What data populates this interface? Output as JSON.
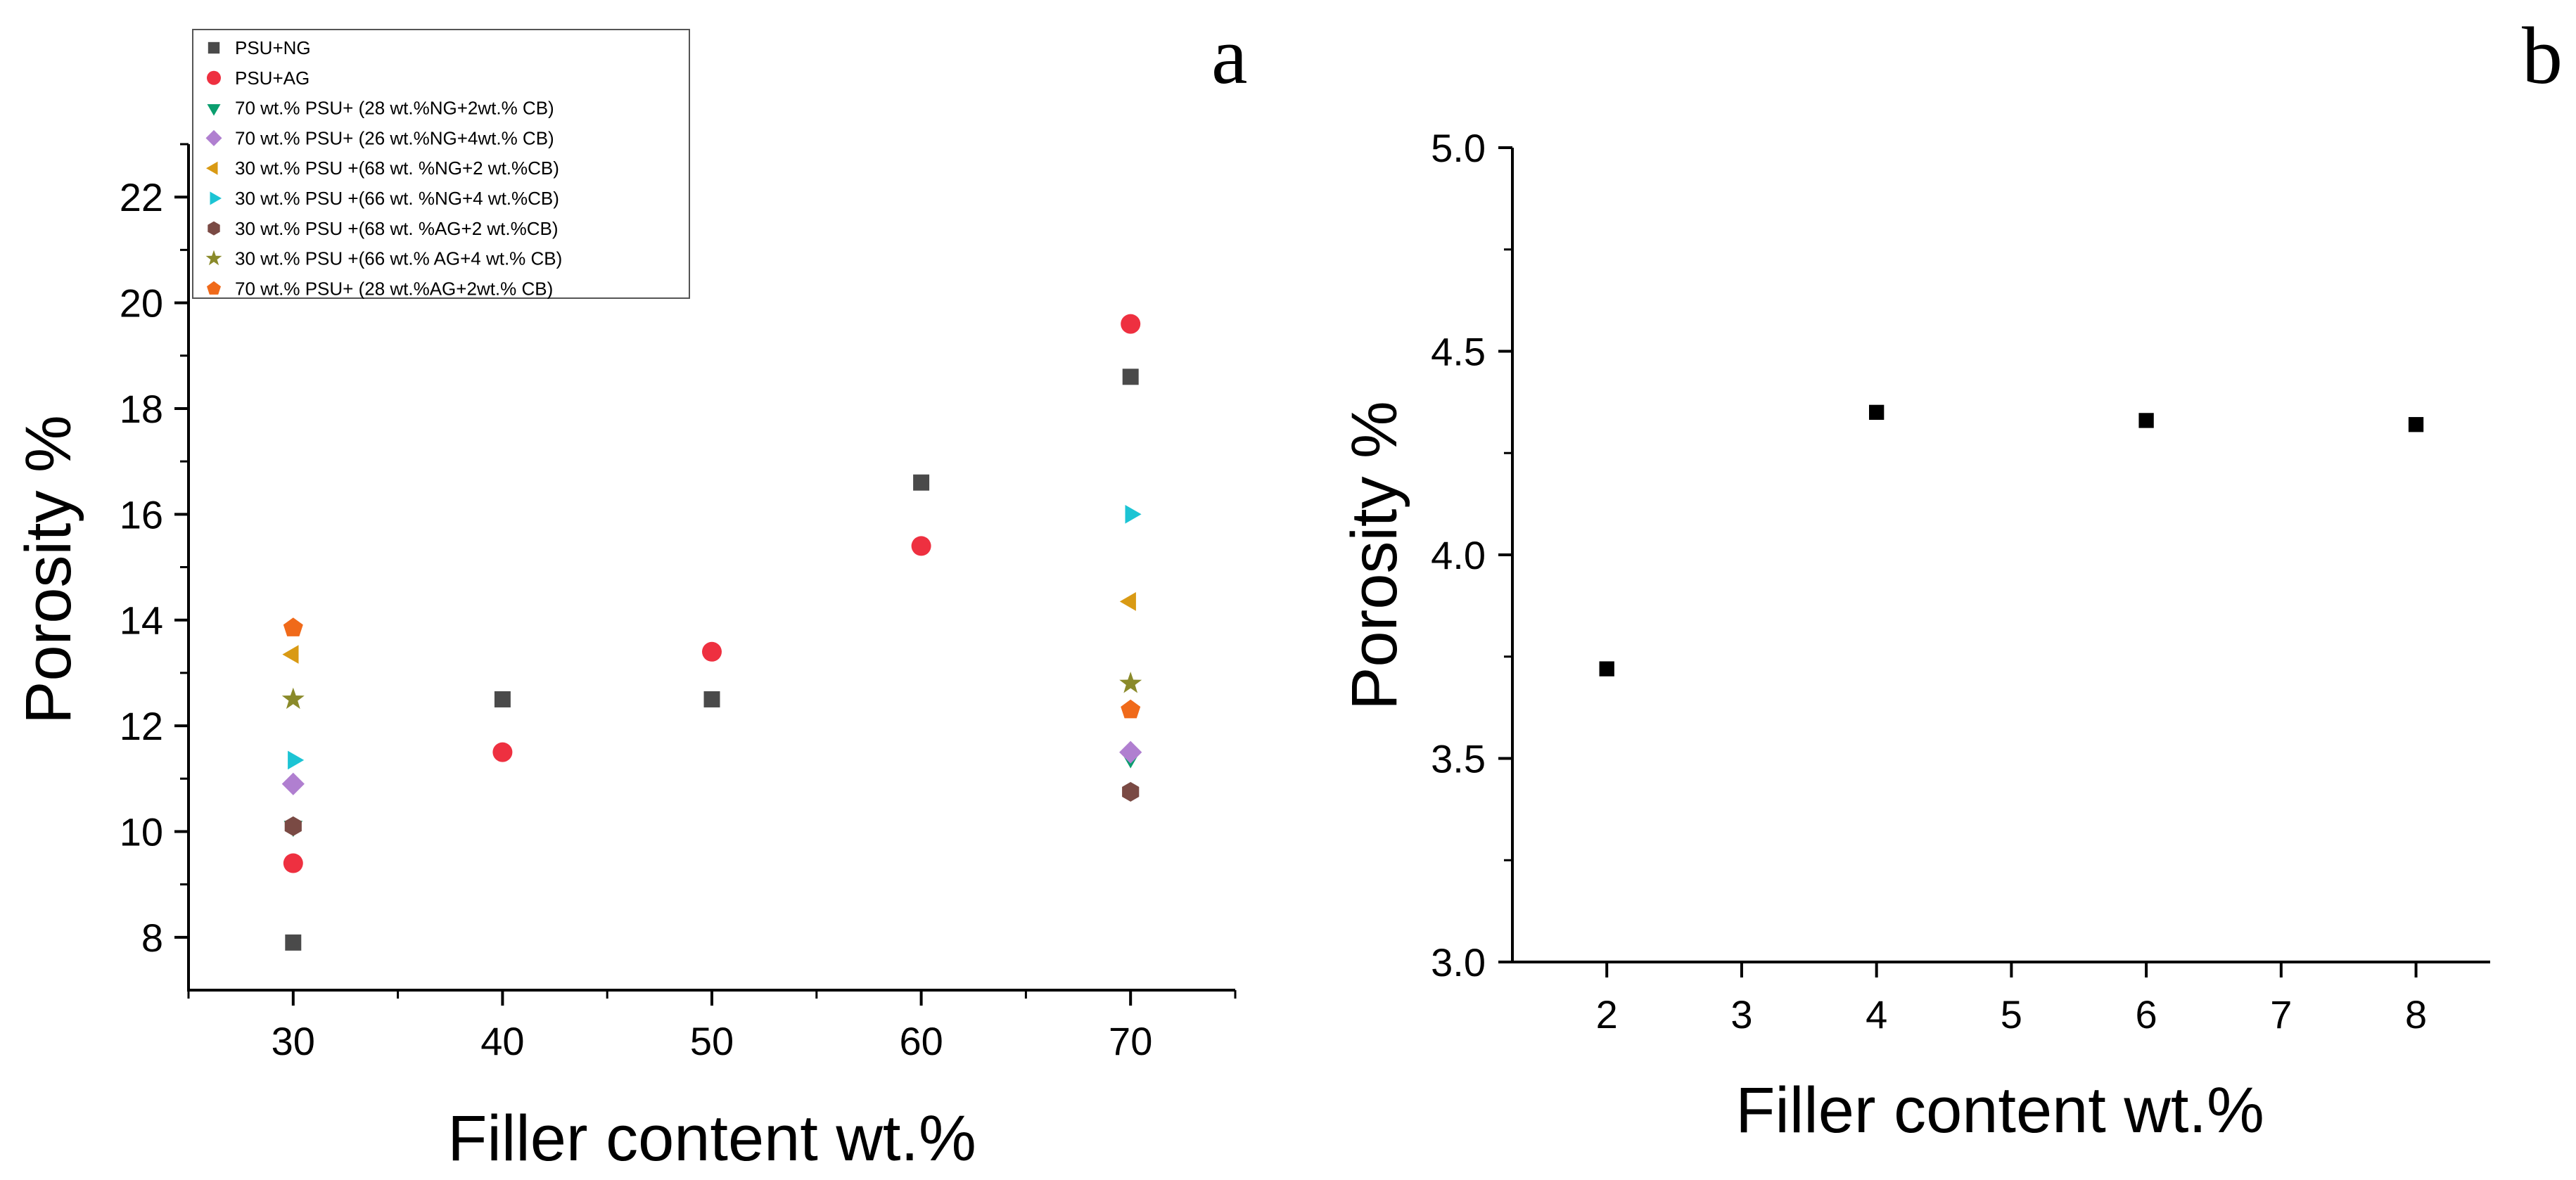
{
  "chart_data": [
    {
      "type": "scatter",
      "panel_label": "a",
      "xlabel": "Filler content wt.%",
      "ylabel": "Porosity %",
      "xlim": [
        25,
        75
      ],
      "ylim": [
        7,
        23
      ],
      "xticks": [
        30,
        40,
        50,
        60,
        70
      ],
      "yticks": [
        8,
        10,
        12,
        14,
        16,
        18,
        20,
        22
      ],
      "legend_position": "top-left",
      "series": [
        {
          "name": "PSU+NG",
          "marker": "square",
          "color": "#4a4a4a",
          "points": [
            [
              30,
              7.9
            ],
            [
              40,
              12.5
            ],
            [
              50,
              12.5
            ],
            [
              60,
              16.6
            ],
            [
              70,
              18.6
            ]
          ]
        },
        {
          "name": "PSU+AG",
          "marker": "circle",
          "color": "#ee3040",
          "points": [
            [
              30,
              9.4
            ],
            [
              40,
              11.5
            ],
            [
              50,
              13.4
            ],
            [
              60,
              15.4
            ],
            [
              70,
              19.6
            ]
          ]
        },
        {
          "name": "70 wt.% PSU+ (28 wt.%NG+2wt.% CB)",
          "marker": "triangle-down",
          "color": "#0a9e6e",
          "points": [
            [
              30,
              10.1
            ],
            [
              70,
              11.4
            ]
          ]
        },
        {
          "name": "70 wt.% PSU+ (26 wt.%NG+4wt.% CB)",
          "marker": "diamond",
          "color": "#b07fd0",
          "points": [
            [
              30,
              10.9
            ],
            [
              70,
              11.5
            ]
          ]
        },
        {
          "name": "30 wt.% PSU +(68 wt. %NG+2 wt.%CB)",
          "marker": "triangle-left",
          "color": "#d99a14",
          "points": [
            [
              30,
              13.35
            ],
            [
              70,
              14.35
            ]
          ]
        },
        {
          "name": "30 wt.% PSU +(66 wt. %NG+4 wt.%CB)",
          "marker": "triangle-right",
          "color": "#1cc4d4",
          "points": [
            [
              30,
              11.35
            ],
            [
              70,
              16.0
            ]
          ]
        },
        {
          "name": "30 wt.% PSU +(68 wt. %AG+2 wt.%CB)",
          "marker": "hexagon",
          "color": "#7a4a44",
          "points": [
            [
              30,
              10.1
            ],
            [
              70,
              10.75
            ]
          ]
        },
        {
          "name": "30 wt.% PSU +(66 wt.% AG+4 wt.% CB)",
          "marker": "star",
          "color": "#8a8a2a",
          "points": [
            [
              30,
              12.5
            ],
            [
              70,
              12.8
            ]
          ]
        },
        {
          "name": "70 wt.% PSU+ (28 wt.%AG+2wt.% CB)",
          "marker": "pentagon",
          "color": "#f06a1a",
          "points": [
            [
              30,
              13.85
            ],
            [
              70,
              12.3
            ]
          ]
        }
      ]
    },
    {
      "type": "scatter",
      "panel_label": "b",
      "xlabel": "Filler content wt.%",
      "ylabel": "Porosity %",
      "xlim": [
        1.3,
        8.55
      ],
      "ylim": [
        3.0,
        5.0
      ],
      "xticks": [
        2,
        3,
        4,
        5,
        6,
        7,
        8
      ],
      "yticks": [
        "3.0",
        "3.5",
        "4.0",
        "4.5",
        "5.0"
      ],
      "series": [
        {
          "name": "",
          "marker": "square",
          "color": "#000000",
          "points": [
            [
              2,
              3.72
            ],
            [
              4,
              4.35
            ],
            [
              6,
              4.33
            ],
            [
              8,
              4.32
            ]
          ]
        }
      ]
    }
  ]
}
